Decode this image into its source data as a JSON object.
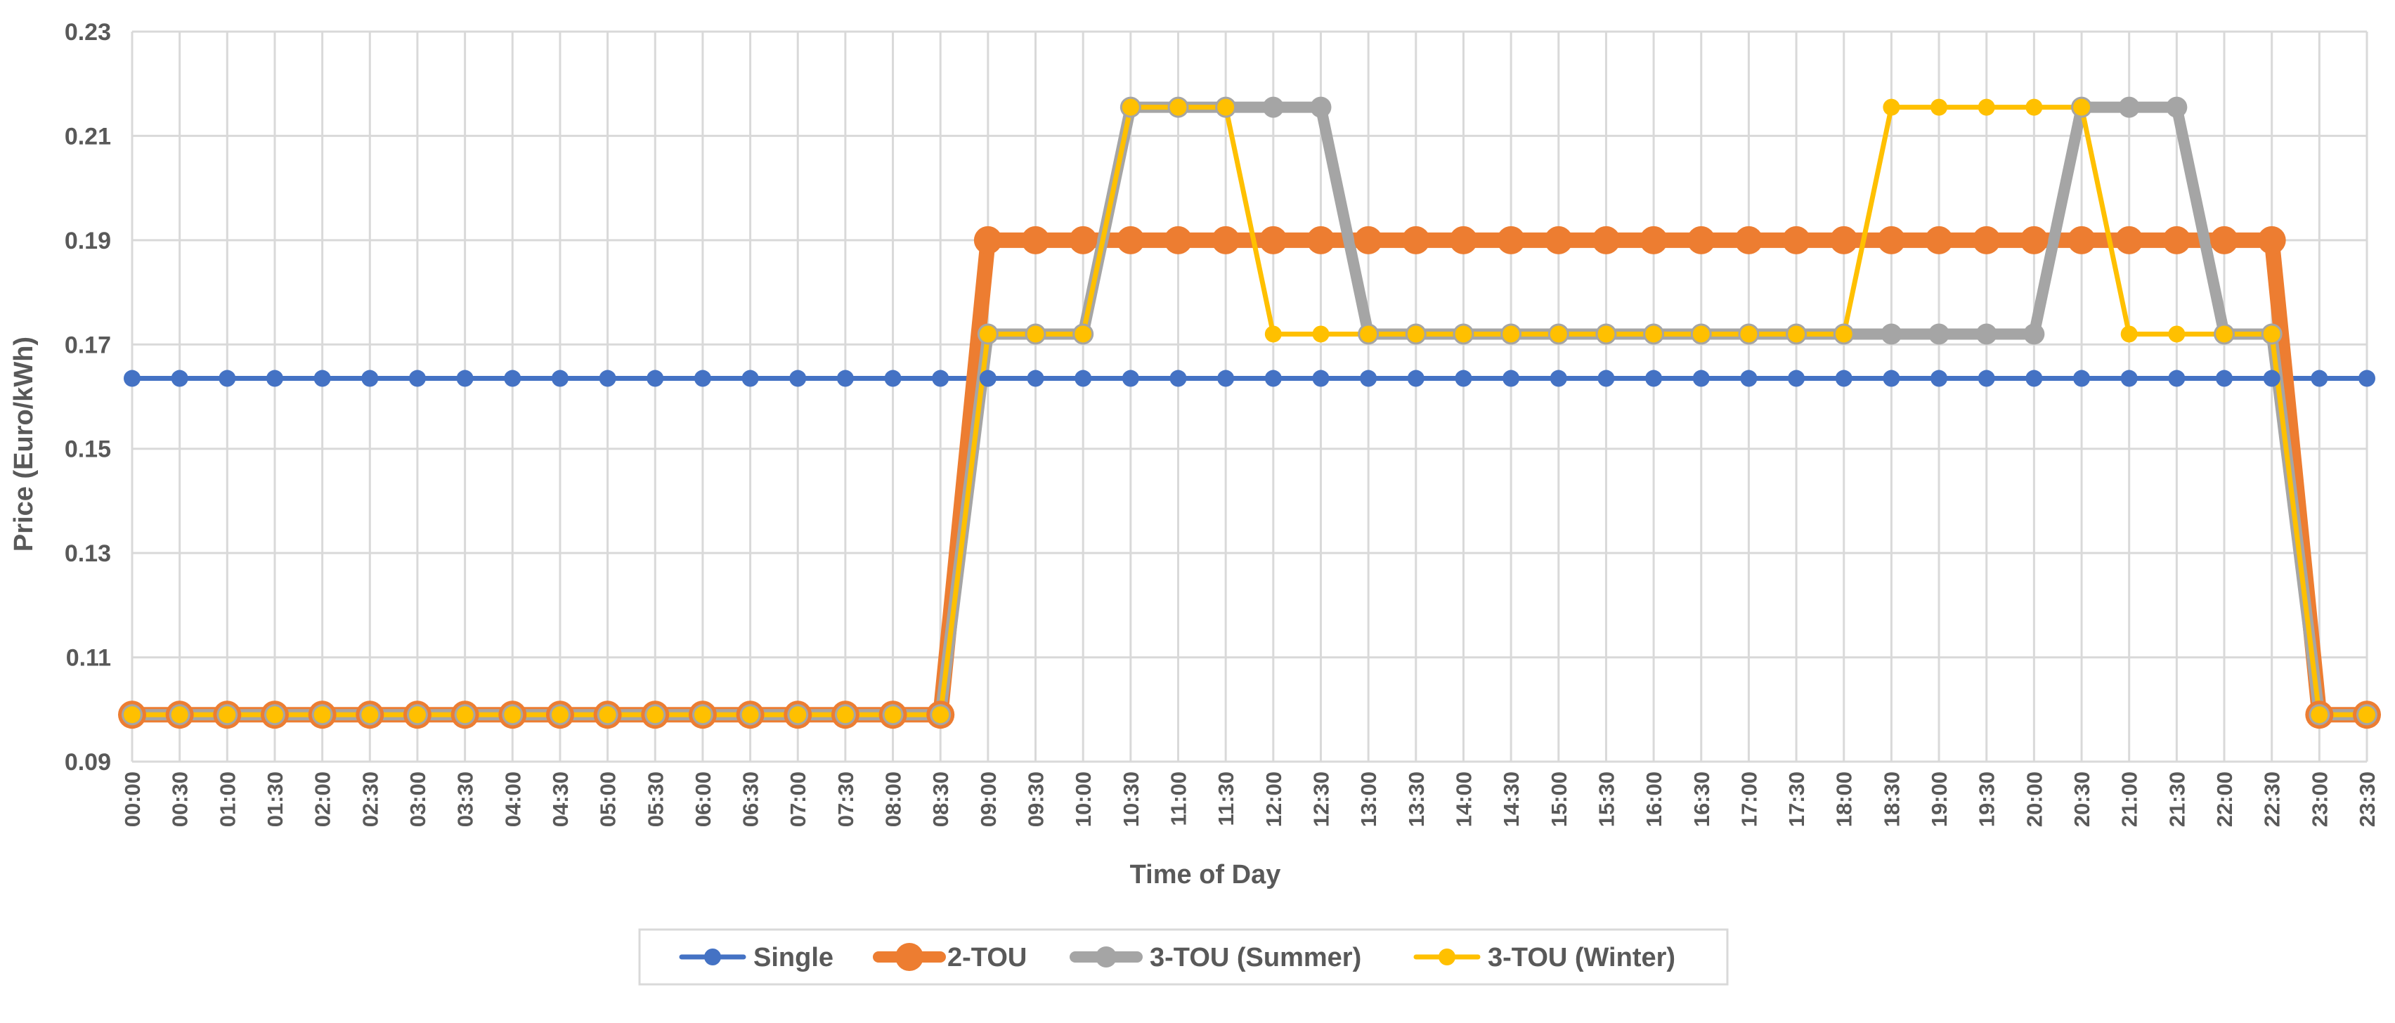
{
  "chart_data": {
    "type": "line",
    "title": "",
    "xlabel": "Time of Day",
    "ylabel": "Price (Euro/kWh)",
    "ylim": [
      0.09,
      0.23
    ],
    "yticks": [
      "0.09",
      "0.11",
      "0.13",
      "0.15",
      "0.17",
      "0.19",
      "0.21",
      "0.23"
    ],
    "grid": true,
    "legend_position": "bottom",
    "categories": [
      "00:00",
      "00:30",
      "01:00",
      "01:30",
      "02:00",
      "02:30",
      "03:00",
      "03:30",
      "04:00",
      "04:30",
      "05:00",
      "05:30",
      "06:00",
      "06:30",
      "07:00",
      "07:30",
      "08:00",
      "08:30",
      "09:00",
      "09:30",
      "10:00",
      "10:30",
      "11:00",
      "11:30",
      "12:00",
      "12:30",
      "13:00",
      "13:30",
      "14:00",
      "14:30",
      "15:00",
      "15:30",
      "16:00",
      "16:30",
      "17:00",
      "17:30",
      "18:00",
      "18:30",
      "19:00",
      "19:30",
      "20:00",
      "20:30",
      "21:00",
      "21:30",
      "22:00",
      "22:30",
      "23:00",
      "23:30"
    ],
    "series": [
      {
        "name": "Single",
        "color": "#4472C4",
        "values": [
          0.1635,
          0.1635,
          0.1635,
          0.1635,
          0.1635,
          0.1635,
          0.1635,
          0.1635,
          0.1635,
          0.1635,
          0.1635,
          0.1635,
          0.1635,
          0.1635,
          0.1635,
          0.1635,
          0.1635,
          0.1635,
          0.1635,
          0.1635,
          0.1635,
          0.1635,
          0.1635,
          0.1635,
          0.1635,
          0.1635,
          0.1635,
          0.1635,
          0.1635,
          0.1635,
          0.1635,
          0.1635,
          0.1635,
          0.1635,
          0.1635,
          0.1635,
          0.1635,
          0.1635,
          0.1635,
          0.1635,
          0.1635,
          0.1635,
          0.1635,
          0.1635,
          0.1635,
          0.1635,
          0.1635,
          0.1635
        ]
      },
      {
        "name": "2-TOU",
        "color": "#ED7D31",
        "values": [
          0.099,
          0.099,
          0.099,
          0.099,
          0.099,
          0.099,
          0.099,
          0.099,
          0.099,
          0.099,
          0.099,
          0.099,
          0.099,
          0.099,
          0.099,
          0.099,
          0.099,
          0.099,
          0.19,
          0.19,
          0.19,
          0.19,
          0.19,
          0.19,
          0.19,
          0.19,
          0.19,
          0.19,
          0.19,
          0.19,
          0.19,
          0.19,
          0.19,
          0.19,
          0.19,
          0.19,
          0.19,
          0.19,
          0.19,
          0.19,
          0.19,
          0.19,
          0.19,
          0.19,
          0.19,
          0.19,
          0.099,
          0.099
        ]
      },
      {
        "name": "3-TOU (Summer)",
        "color": "#A5A5A5",
        "values": [
          0.099,
          0.099,
          0.099,
          0.099,
          0.099,
          0.099,
          0.099,
          0.099,
          0.099,
          0.099,
          0.099,
          0.099,
          0.099,
          0.099,
          0.099,
          0.099,
          0.099,
          0.099,
          0.172,
          0.172,
          0.172,
          0.2155,
          0.2155,
          0.2155,
          0.2155,
          0.2155,
          0.172,
          0.172,
          0.172,
          0.172,
          0.172,
          0.172,
          0.172,
          0.172,
          0.172,
          0.172,
          0.172,
          0.172,
          0.172,
          0.172,
          0.172,
          0.2155,
          0.2155,
          0.2155,
          0.172,
          0.172,
          0.099,
          0.099
        ]
      },
      {
        "name": "3-TOU (Winter)",
        "color": "#FFC000",
        "values": [
          0.099,
          0.099,
          0.099,
          0.099,
          0.099,
          0.099,
          0.099,
          0.099,
          0.099,
          0.099,
          0.099,
          0.099,
          0.099,
          0.099,
          0.099,
          0.099,
          0.099,
          0.099,
          0.172,
          0.172,
          0.172,
          0.2155,
          0.2155,
          0.2155,
          0.172,
          0.172,
          0.172,
          0.172,
          0.172,
          0.172,
          0.172,
          0.172,
          0.172,
          0.172,
          0.172,
          0.172,
          0.172,
          0.2155,
          0.2155,
          0.2155,
          0.2155,
          0.2155,
          0.172,
          0.172,
          0.172,
          0.172,
          0.099,
          0.099
        ]
      }
    ]
  }
}
